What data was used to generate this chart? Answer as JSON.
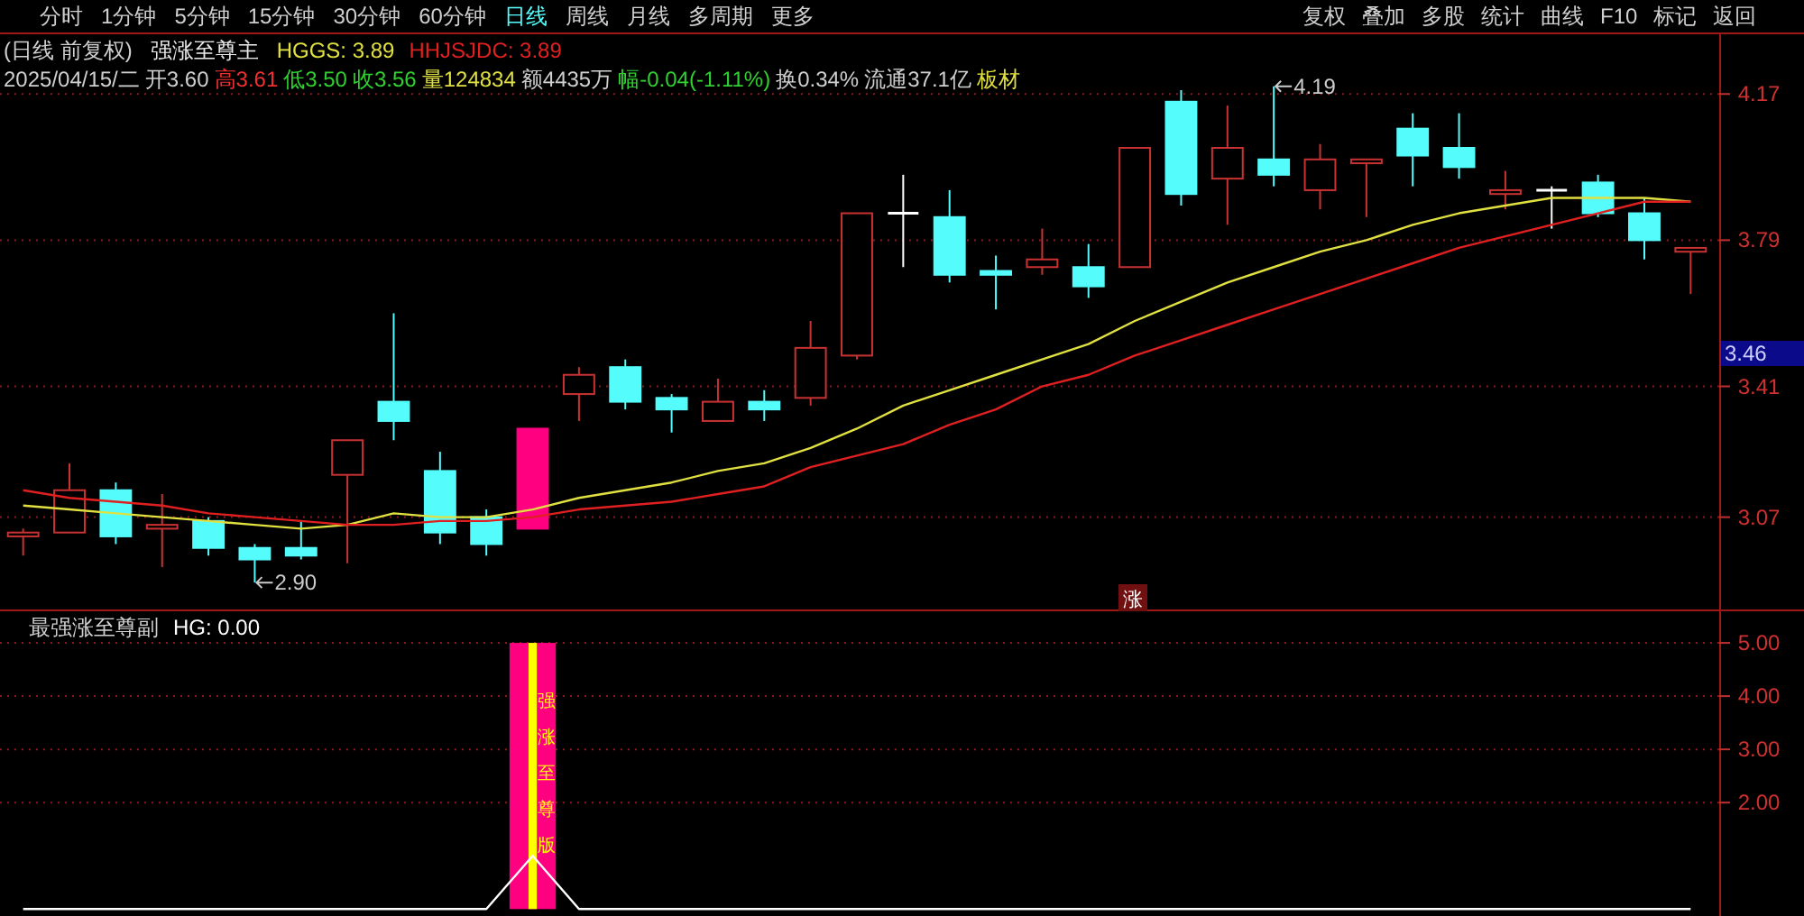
{
  "chart_data": [
    {
      "type": "candlestick",
      "categories": [
        null,
        null,
        null,
        null,
        null,
        null,
        null,
        null,
        null,
        null,
        null,
        null,
        null,
        null,
        null,
        null,
        null,
        null,
        null,
        null,
        null,
        null,
        null,
        null,
        null,
        null,
        null,
        null,
        null,
        null,
        null,
        null,
        null,
        null,
        null,
        null,
        null
      ],
      "ylim": [
        2.83,
        4.33
      ],
      "yticks": [
        3.07,
        3.41,
        3.79,
        4.17
      ],
      "grid": "y",
      "annotations": [
        "分时",
        "1分钟",
        "5分钟",
        "15分钟",
        "30分钟",
        "60分钟",
        "日线",
        "周线",
        "月线",
        "多周期",
        "更多",
        "复权",
        "叠加",
        "多股",
        "统计",
        "曲线",
        "F10",
        "标记",
        "返回",
        "(日线 前复权)",
        "强涨至尊主",
        "2025/04/15/二",
        "开3.60",
        "高3.61",
        "低3.50",
        "收3.56",
        "量124834",
        "额4435万",
        "幅-0.04(-1.11%)",
        "换0.34%",
        "流通37.1亿",
        "板材",
        "涨",
        "2.90",
        "4.19",
        "3.46"
      ],
      "series": [
        {
          "type": "candlestick",
          "colors": [
            "#c83232",
            "#c83232",
            "#54fcfc",
            "#c83232",
            "#54fcfc",
            "#54fcfc",
            "#54fcfc",
            "#c83232",
            "#54fcfc",
            "#54fcfc",
            "#54fcfc",
            null,
            "#c83232",
            "#54fcfc",
            "#54fcfc",
            "#c83232",
            "#54fcfc",
            "#c83232",
            "#c83232",
            "#ffffff",
            "#54fcfc",
            "#54fcfc",
            "#c83232",
            "#54fcfc",
            "#c83232",
            "#54fcfc",
            "#c83232",
            "#54fcfc",
            "#c83232",
            "#c83232",
            "#54fcfc",
            "#54fcfc",
            "#c83232",
            "#ffffff",
            "#54fcfc",
            "#54fcfc",
            "#c83232"
          ],
          "ohlc": [
            [
              3.02,
              3.04,
              2.97,
              3.03
            ],
            [
              3.03,
              3.21,
              3.03,
              3.14
            ],
            [
              3.14,
              3.16,
              3.0,
              3.02
            ],
            [
              3.04,
              3.13,
              2.94,
              3.05
            ],
            [
              3.06,
              3.07,
              2.97,
              2.99
            ],
            [
              2.99,
              3.0,
              2.9,
              2.96
            ],
            [
              2.99,
              3.06,
              2.96,
              2.97
            ],
            [
              3.18,
              3.27,
              2.95,
              3.27
            ],
            [
              3.37,
              3.6,
              3.27,
              3.32
            ],
            [
              3.19,
              3.24,
              3.0,
              3.03
            ],
            [
              3.07,
              3.09,
              2.97,
              3.0
            ],
            null,
            [
              3.39,
              3.46,
              3.32,
              3.44
            ],
            [
              3.46,
              3.48,
              3.35,
              3.37
            ],
            [
              3.38,
              3.39,
              3.29,
              3.35
            ],
            [
              3.32,
              3.43,
              3.32,
              3.37
            ],
            [
              3.37,
              3.4,
              3.32,
              3.35
            ],
            [
              3.38,
              3.58,
              3.36,
              3.51
            ],
            [
              3.49,
              3.86,
              3.48,
              3.86
            ],
            [
              3.86,
              3.96,
              3.72,
              3.86
            ],
            [
              3.85,
              3.92,
              3.68,
              3.7
            ],
            [
              3.71,
              3.75,
              3.61,
              3.7
            ],
            [
              3.72,
              3.82,
              3.7,
              3.74
            ],
            [
              3.72,
              3.78,
              3.64,
              3.67
            ],
            [
              3.72,
              4.03,
              3.72,
              4.03
            ],
            [
              4.15,
              4.18,
              3.88,
              3.91
            ],
            [
              3.95,
              4.14,
              3.83,
              4.03
            ],
            [
              4.0,
              4.19,
              3.93,
              3.96
            ],
            [
              3.92,
              4.04,
              3.87,
              4.0
            ],
            [
              3.99,
              4.0,
              3.85,
              4.0
            ],
            [
              4.08,
              4.12,
              3.93,
              4.01
            ],
            [
              4.03,
              4.12,
              3.95,
              3.98
            ],
            [
              3.91,
              3.97,
              3.87,
              3.92
            ],
            [
              3.92,
              3.93,
              3.82,
              3.92
            ],
            [
              3.94,
              3.96,
              3.85,
              3.86
            ],
            [
              3.86,
              3.9,
              3.74,
              3.79
            ],
            [
              3.76,
              3.77,
              3.65,
              3.77
            ]
          ]
        },
        {
          "type": "candlestick",
          "color": "#ff0080",
          "ohlc": [
            null,
            null,
            null,
            null,
            null,
            null,
            null,
            null,
            null,
            null,
            null,
            [
              3.04,
              3.3,
              3.04,
              3.3
            ],
            null,
            null,
            null,
            null,
            null,
            null,
            null,
            null,
            null,
            null,
            null,
            null,
            null,
            null,
            null,
            null,
            null,
            null,
            null,
            null,
            null,
            null,
            null,
            null,
            null
          ]
        },
        {
          "type": "line",
          "name": "HGGS: 3.89",
          "color": "#e0e040",
          "values": [
            3.1,
            3.09,
            3.08,
            3.07,
            3.06,
            3.05,
            3.04,
            3.05,
            3.08,
            3.07,
            3.07,
            3.09,
            3.12,
            3.14,
            3.16,
            3.19,
            3.21,
            3.25,
            3.3,
            3.36,
            3.4,
            3.44,
            3.48,
            3.52,
            3.58,
            3.63,
            3.68,
            3.72,
            3.76,
            3.79,
            3.83,
            3.86,
            3.88,
            3.9,
            3.9,
            3.9,
            3.89
          ]
        },
        {
          "type": "line",
          "name": "HHJSJDC: 3.89",
          "color": "#e02020",
          "values": [
            3.14,
            3.12,
            3.11,
            3.1,
            3.08,
            3.07,
            3.06,
            3.05,
            3.05,
            3.06,
            3.06,
            3.07,
            3.09,
            3.1,
            3.11,
            3.13,
            3.15,
            3.2,
            3.23,
            3.26,
            3.31,
            3.35,
            3.41,
            3.44,
            3.49,
            3.53,
            3.57,
            3.61,
            3.65,
            3.69,
            3.73,
            3.77,
            3.8,
            3.83,
            3.86,
            3.89,
            3.89
          ]
        }
      ]
    },
    {
      "type": "line",
      "categories": [
        null,
        null,
        null,
        null,
        null,
        null,
        null,
        null,
        null,
        null,
        null,
        null,
        null,
        null,
        null,
        null,
        null,
        null,
        null,
        null,
        null,
        null,
        null,
        null,
        null,
        null,
        null,
        null,
        null,
        null,
        null,
        null,
        null,
        null,
        null,
        null,
        null
      ],
      "ylim": [
        -0.13,
        5.56
      ],
      "yticks": [
        {
          "value": 5,
          "label": "5.00"
        },
        {
          "value": 4,
          "label": "4.00"
        },
        {
          "value": 3,
          "label": "3.00"
        },
        {
          "value": 2,
          "label": "2.00"
        }
      ],
      "grid": "y",
      "annotations": [
        "最强涨至尊副",
        "强涨至尊版"
      ],
      "series": [
        {
          "type": "bar",
          "color": "#ff0080",
          "values": [
            null,
            null,
            null,
            null,
            null,
            null,
            null,
            null,
            null,
            null,
            null,
            5,
            null,
            null,
            null,
            null,
            null,
            null,
            null,
            null,
            null,
            null,
            null,
            null,
            null,
            null,
            null,
            null,
            null,
            null,
            null,
            null,
            null,
            null,
            null,
            null,
            null
          ]
        },
        {
          "type": "bar",
          "color": "#ffff00",
          "values": [
            null,
            null,
            null,
            null,
            null,
            null,
            null,
            null,
            null,
            null,
            null,
            5,
            null,
            null,
            null,
            null,
            null,
            null,
            null,
            null,
            null,
            null,
            null,
            null,
            null,
            null,
            null,
            null,
            null,
            null,
            null,
            null,
            null,
            null,
            null,
            null,
            null
          ]
        },
        {
          "type": "line",
          "name": "HG: 0.00",
          "color": "#ffffff",
          "values": [
            0,
            0,
            0,
            0,
            0,
            0,
            0,
            0,
            0,
            0,
            0,
            1,
            0,
            0,
            0,
            0,
            0,
            0,
            0,
            0,
            0,
            0,
            0,
            0,
            0,
            0,
            0,
            0,
            0,
            0,
            0,
            0,
            0,
            0,
            0,
            0,
            0
          ]
        }
      ]
    }
  ]
}
